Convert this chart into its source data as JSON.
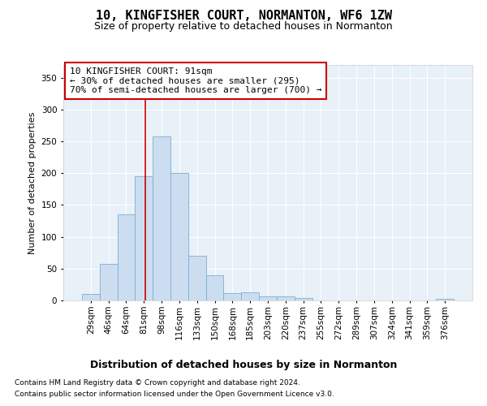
{
  "title1": "10, KINGFISHER COURT, NORMANTON, WF6 1ZW",
  "title2": "Size of property relative to detached houses in Normanton",
  "xlabel": "Distribution of detached houses by size in Normanton",
  "ylabel": "Number of detached properties",
  "bar_labels": [
    "29sqm",
    "46sqm",
    "64sqm",
    "81sqm",
    "98sqm",
    "116sqm",
    "133sqm",
    "150sqm",
    "168sqm",
    "185sqm",
    "203sqm",
    "220sqm",
    "237sqm",
    "255sqm",
    "272sqm",
    "289sqm",
    "307sqm",
    "324sqm",
    "341sqm",
    "359sqm",
    "376sqm"
  ],
  "bar_values": [
    10,
    57,
    135,
    195,
    258,
    200,
    70,
    40,
    12,
    13,
    6,
    7,
    4,
    0,
    0,
    0,
    0,
    0,
    0,
    0,
    3
  ],
  "bar_color": "#ccddf0",
  "bar_edgecolor": "#7aafd4",
  "vline_color": "#cc0000",
  "vline_x": 3.09,
  "annotation_line1": "10 KINGFISHER COURT: 91sqm",
  "annotation_line2": "← 30% of detached houses are smaller (295)",
  "annotation_line3": "70% of semi-detached houses are larger (700) →",
  "annotation_box_edgecolor": "#cc0000",
  "ylim": [
    0,
    370
  ],
  "yticks": [
    0,
    50,
    100,
    150,
    200,
    250,
    300,
    350
  ],
  "bg_color": "#ffffff",
  "plot_bg_color": "#e8f0f8",
  "grid_color": "#ffffff",
  "footer1": "Contains HM Land Registry data © Crown copyright and database right 2024.",
  "footer2": "Contains public sector information licensed under the Open Government Licence v3.0.",
  "title1_fontsize": 11,
  "title2_fontsize": 9,
  "xlabel_fontsize": 9,
  "ylabel_fontsize": 8,
  "tick_fontsize": 7.5,
  "footer_fontsize": 6.5,
  "annot_fontsize": 8
}
